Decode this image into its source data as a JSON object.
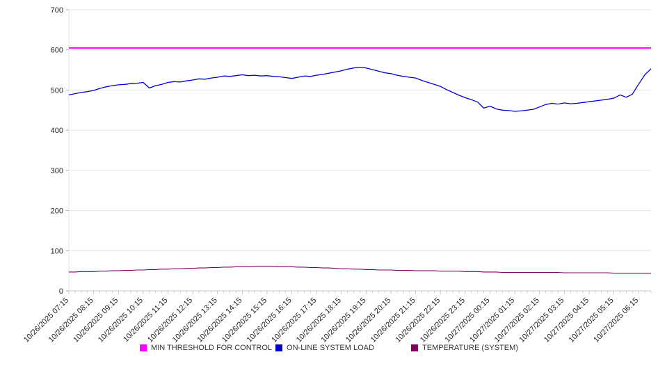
{
  "chart_data": {
    "type": "line",
    "title": "",
    "xlabel": "",
    "ylabel": "",
    "ylim": [
      0,
      700
    ],
    "y_ticks": [
      0,
      100,
      200,
      300,
      400,
      500,
      600,
      700
    ],
    "grid": "horizontal",
    "legend_position": "bottom",
    "points_per_tick": 4,
    "x_tick_labels": [
      "10/26/2025 07:15",
      "10/26/2025 08:15",
      "10/26/2025 09:15",
      "10/26/2025 10:15",
      "10/26/2025 11:15",
      "10/26/2025 12:15",
      "10/26/2025 13:15",
      "10/26/2025 14:15",
      "10/26/2025 15:15",
      "10/26/2025 16:15",
      "10/26/2025 17:15",
      "10/26/2025 18:15",
      "10/26/2025 19:15",
      "10/26/2025 20:15",
      "10/26/2025 21:15",
      "10/26/2025 22:15",
      "10/26/2025 23:15",
      "10/27/2025 00:15",
      "10/27/2025 01:15",
      "10/27/2025 02:15",
      "10/27/2025 03:15",
      "10/27/2025 04:15",
      "10/27/2025 05:15",
      "10/27/2025 06:15"
    ],
    "series": [
      {
        "name": "MIN THRESHOLD FOR CONTROL",
        "color": "#ff00ff",
        "type": "constant",
        "value": 605,
        "stroke_width": 2
      },
      {
        "name": "ON-LINE SYSTEM LOAD",
        "color": "#0000cc",
        "type": "values",
        "stroke_width": 1.3,
        "values": [
          488,
          491,
          494,
          496,
          499,
          504,
          508,
          511,
          513,
          514,
          516,
          517,
          519,
          505,
          511,
          514,
          519,
          521,
          520,
          523,
          525,
          528,
          527,
          530,
          532,
          535,
          534,
          536,
          538,
          536,
          537,
          535,
          536,
          534,
          533,
          531,
          529,
          532,
          535,
          534,
          537,
          539,
          542,
          545,
          548,
          552,
          555,
          557,
          555,
          551,
          547,
          543,
          541,
          537,
          534,
          532,
          530,
          524,
          519,
          514,
          509,
          501,
          494,
          487,
          481,
          476,
          470,
          455,
          460,
          453,
          450,
          449,
          447,
          448,
          450,
          452,
          458,
          464,
          467,
          465,
          468,
          466,
          467,
          469,
          471,
          473,
          475,
          477,
          480,
          488,
          482,
          490,
          515,
          538,
          553
        ]
      },
      {
        "name": "TEMPERATURE (SYSTEM)",
        "color": "#800062",
        "type": "values",
        "stroke_width": 1.1,
        "values": [
          47,
          47,
          48,
          48,
          48,
          49,
          49,
          50,
          50,
          51,
          51,
          52,
          52,
          53,
          53,
          54,
          54,
          55,
          55,
          56,
          56,
          57,
          57,
          58,
          58,
          59,
          59,
          60,
          60,
          60,
          61,
          61,
          61,
          61,
          60,
          60,
          60,
          59,
          59,
          58,
          58,
          57,
          57,
          56,
          55,
          55,
          54,
          54,
          53,
          53,
          52,
          52,
          52,
          51,
          51,
          51,
          50,
          50,
          50,
          50,
          49,
          49,
          49,
          49,
          48,
          48,
          48,
          47,
          47,
          47,
          46,
          46,
          46,
          46,
          46,
          46,
          46,
          46,
          46,
          46,
          45,
          45,
          45,
          45,
          45,
          45,
          45,
          45,
          44,
          44,
          44,
          44,
          44,
          44,
          44
        ]
      }
    ],
    "style": {
      "grid_color": "#e3e3e3",
      "axis_color": "#c8c8c8",
      "tick_color": "#aaaaaa",
      "label_color": "#222222"
    }
  }
}
